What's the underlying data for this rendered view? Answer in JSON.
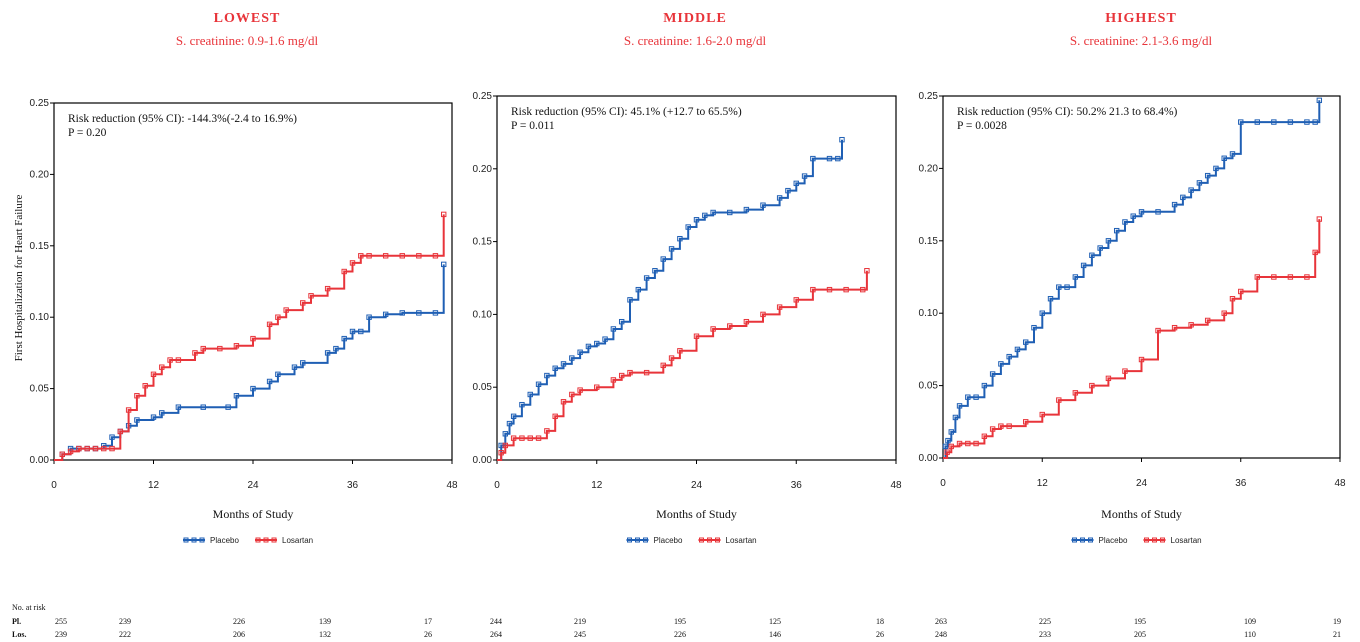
{
  "colors": {
    "placebo": "#1f5fb4",
    "losartan": "#e8343a"
  },
  "y_axis_label": "First Hospitalization for Heart Failure",
  "chart_data": [
    {
      "type": "line",
      "title": "LOWEST",
      "subtitle": "S. creatinine: 0.9-1.6 mg/dl",
      "annotation": "Risk reduction (95% CI): -144.3%(-2.4 to 16.9%)",
      "p_value": "P = 0.20",
      "xlabel": "Months of Study",
      "xlim": [
        0,
        48
      ],
      "ylim": [
        0,
        0.25
      ],
      "xticks": [
        "0",
        "12",
        "24",
        "36",
        "48"
      ],
      "yticks": [
        "0.00",
        "0.05",
        "0.10",
        "0.15",
        "0.20",
        "0.25"
      ],
      "legend": [
        "Placebo",
        "Losartan"
      ],
      "series": [
        {
          "name": "Placebo",
          "x": [
            0,
            1,
            2,
            3,
            4,
            5,
            6,
            7,
            8,
            9,
            10,
            12,
            13,
            15,
            18,
            21,
            22,
            24,
            26,
            27,
            29,
            30,
            33,
            34,
            35,
            36,
            37,
            38,
            40,
            42,
            44,
            46,
            47
          ],
          "y": [
            0,
            0.004,
            0.008,
            0.008,
            0.008,
            0.008,
            0.01,
            0.016,
            0.02,
            0.024,
            0.028,
            0.03,
            0.033,
            0.037,
            0.037,
            0.037,
            0.045,
            0.05,
            0.055,
            0.06,
            0.065,
            0.068,
            0.075,
            0.078,
            0.085,
            0.09,
            0.09,
            0.1,
            0.102,
            0.103,
            0.103,
            0.103,
            0.137
          ]
        },
        {
          "name": "Losartan",
          "x": [
            0,
            1,
            2,
            3,
            4,
            5,
            6,
            7,
            8,
            9,
            10,
            11,
            12,
            13,
            14,
            15,
            17,
            18,
            20,
            22,
            24,
            26,
            27,
            28,
            30,
            31,
            33,
            35,
            36,
            37,
            38,
            40,
            42,
            44,
            46,
            47
          ],
          "y": [
            0,
            0.004,
            0.006,
            0.008,
            0.008,
            0.008,
            0.008,
            0.008,
            0.02,
            0.035,
            0.045,
            0.052,
            0.06,
            0.065,
            0.07,
            0.07,
            0.075,
            0.078,
            0.078,
            0.08,
            0.085,
            0.095,
            0.1,
            0.105,
            0.11,
            0.115,
            0.12,
            0.132,
            0.138,
            0.143,
            0.143,
            0.143,
            0.143,
            0.143,
            0.143,
            0.172
          ]
        }
      ],
      "at_risk": {
        "placebo": [
          "255",
          "239",
          "226",
          "139",
          "17"
        ],
        "losartan": [
          "239",
          "222",
          "206",
          "132",
          "26"
        ]
      }
    },
    {
      "type": "line",
      "title": "MIDDLE",
      "subtitle": "S. creatinine: 1.6-2.0 mg/dl",
      "annotation": "Risk reduction (95% CI): 45.1% (+12.7 to 65.5%)",
      "p_value": "P = 0.011",
      "xlabel": "Months of Study",
      "xlim": [
        0,
        48
      ],
      "ylim": [
        0,
        0.25
      ],
      "xticks": [
        "0",
        "12",
        "24",
        "36",
        "48"
      ],
      "yticks": [
        "0.00",
        "0.05",
        "0.10",
        "0.15",
        "0.20",
        "0.25"
      ],
      "legend": [
        "Placebo",
        "Losartan"
      ],
      "series": [
        {
          "name": "Placebo",
          "x": [
            0,
            0.5,
            1,
            1.5,
            2,
            3,
            4,
            5,
            6,
            7,
            8,
            9,
            10,
            11,
            12,
            13,
            14,
            15,
            16,
            17,
            18,
            19,
            20,
            21,
            22,
            23,
            24,
            25,
            26,
            28,
            30,
            32,
            34,
            35,
            36,
            37,
            38,
            40,
            41,
            41.5
          ],
          "y": [
            0,
            0.01,
            0.018,
            0.025,
            0.03,
            0.038,
            0.045,
            0.052,
            0.058,
            0.063,
            0.066,
            0.07,
            0.074,
            0.078,
            0.08,
            0.083,
            0.09,
            0.095,
            0.11,
            0.117,
            0.125,
            0.13,
            0.138,
            0.145,
            0.152,
            0.16,
            0.165,
            0.168,
            0.17,
            0.17,
            0.172,
            0.175,
            0.18,
            0.185,
            0.19,
            0.195,
            0.207,
            0.207,
            0.207,
            0.22
          ]
        },
        {
          "name": "Losartan",
          "x": [
            0,
            0.5,
            1,
            2,
            3,
            4,
            5,
            6,
            7,
            8,
            9,
            10,
            12,
            14,
            15,
            16,
            18,
            20,
            21,
            22,
            24,
            26,
            28,
            30,
            32,
            34,
            36,
            38,
            40,
            42,
            44,
            44.5
          ],
          "y": [
            0,
            0.005,
            0.01,
            0.015,
            0.015,
            0.015,
            0.015,
            0.02,
            0.03,
            0.04,
            0.045,
            0.048,
            0.05,
            0.055,
            0.058,
            0.06,
            0.06,
            0.065,
            0.07,
            0.075,
            0.085,
            0.09,
            0.092,
            0.095,
            0.1,
            0.105,
            0.11,
            0.117,
            0.117,
            0.117,
            0.117,
            0.13
          ]
        }
      ],
      "at_risk": {
        "placebo": [
          "244",
          "219",
          "195",
          "125",
          "18"
        ],
        "losartan": [
          "264",
          "245",
          "226",
          "146",
          "26"
        ]
      }
    },
    {
      "type": "line",
      "title": "HIGHEST",
      "subtitle": "S. creatinine: 2.1-3.6 mg/dl",
      "annotation": "Risk reduction (95% CI): 50.2% 21.3 to 68.4%)",
      "p_value": "P = 0.0028",
      "xlabel": "Months of Study",
      "xlim": [
        0,
        48
      ],
      "ylim": [
        0,
        0.25
      ],
      "xticks": [
        "0",
        "12",
        "24",
        "36",
        "48"
      ],
      "yticks": [
        "0.00",
        "0.05",
        "0.10",
        "0.15",
        "0.20",
        "0.25"
      ],
      "legend": [
        "Placebo",
        "Losartan"
      ],
      "series": [
        {
          "name": "Placebo",
          "x": [
            0,
            0.3,
            0.6,
            1,
            1.5,
            2,
            3,
            4,
            5,
            6,
            7,
            8,
            9,
            10,
            11,
            12,
            13,
            14,
            15,
            16,
            17,
            18,
            19,
            20,
            21,
            22,
            23,
            24,
            26,
            28,
            29,
            30,
            31,
            32,
            33,
            34,
            35,
            36,
            38,
            40,
            42,
            44,
            45,
            45.5
          ],
          "y": [
            0,
            0.008,
            0.012,
            0.018,
            0.028,
            0.036,
            0.042,
            0.042,
            0.05,
            0.058,
            0.065,
            0.07,
            0.075,
            0.08,
            0.09,
            0.1,
            0.11,
            0.118,
            0.118,
            0.125,
            0.133,
            0.14,
            0.145,
            0.15,
            0.157,
            0.163,
            0.167,
            0.17,
            0.17,
            0.175,
            0.18,
            0.185,
            0.19,
            0.195,
            0.2,
            0.207,
            0.21,
            0.232,
            0.232,
            0.232,
            0.232,
            0.232,
            0.232,
            0.247
          ]
        },
        {
          "name": "Losartan",
          "x": [
            0,
            0.5,
            1,
            2,
            3,
            4,
            5,
            6,
            7,
            8,
            10,
            12,
            14,
            16,
            18,
            20,
            22,
            24,
            26,
            28,
            30,
            32,
            34,
            35,
            36,
            38,
            40,
            42,
            44,
            45,
            45.5
          ],
          "y": [
            0,
            0.004,
            0.008,
            0.01,
            0.01,
            0.01,
            0.015,
            0.02,
            0.022,
            0.022,
            0.025,
            0.03,
            0.04,
            0.045,
            0.05,
            0.055,
            0.06,
            0.068,
            0.088,
            0.09,
            0.092,
            0.095,
            0.1,
            0.11,
            0.115,
            0.125,
            0.125,
            0.125,
            0.125,
            0.142,
            0.165
          ]
        }
      ],
      "at_risk": {
        "placebo": [
          "263",
          "225",
          "195",
          "109",
          "19"
        ],
        "losartan": [
          "248",
          "233",
          "205",
          "110",
          "21"
        ]
      }
    }
  ],
  "risk_table": {
    "title": "No. at risk",
    "placebo_label": "Pl.",
    "losartan_label": "Los."
  }
}
